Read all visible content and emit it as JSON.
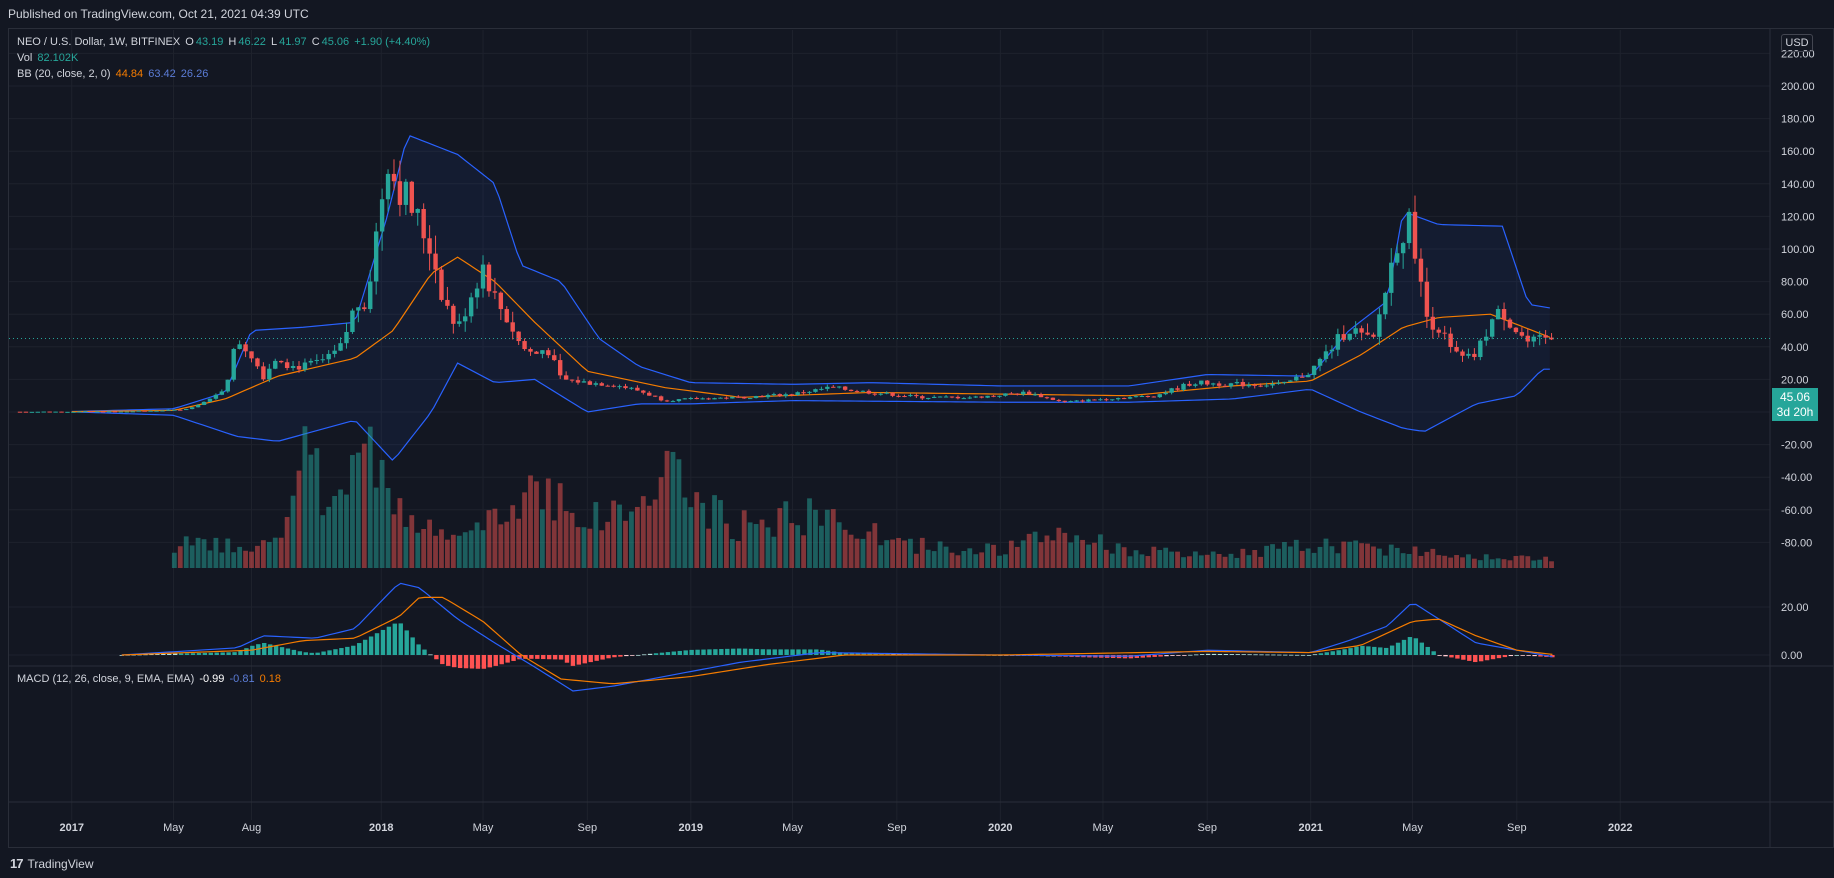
{
  "header": {
    "published": "Published on TradingView.com, Oct 21, 2021 04:39 UTC"
  },
  "footer": {
    "brand": "TradingView"
  },
  "legend": {
    "symbol": "NEO / U.S. Dollar, 1W, BITFINEX",
    "open_label": "O",
    "open": "43.19",
    "high_label": "H",
    "high": "46.22",
    "low_label": "L",
    "low": "41.97",
    "close_label": "C",
    "close": "45.06",
    "change": "+1.90 (+4.40%)",
    "vol_label": "Vol",
    "vol": "82.102K",
    "bb_label": "BB (20, close, 2, 0)",
    "bb_basis": "44.84",
    "bb_upper": "63.42",
    "bb_lower": "26.26",
    "macd_label": "MACD (12, 26, close, 9, EMA, EMA)",
    "macd_hist": "-0.99",
    "macd_line": "-0.81",
    "macd_signal": "0.18"
  },
  "price_axis": {
    "currency": "USD",
    "last_price": "45.06",
    "countdown": "3d 20h"
  },
  "colors": {
    "background": "#131722",
    "up": "#26a69a",
    "down": "#ef5350",
    "bb_band": "#2962ff",
    "bb_basis": "#f57c00",
    "macd_line": "#2962ff",
    "signal_line": "#f57c00",
    "grid": "#1e222d",
    "axis_text": "#d1d4dc"
  },
  "chart_data": [
    {
      "type": "candlestick",
      "title": "NEO / U.S. Dollar, 1W, BITFINEX",
      "ylim": [
        -100,
        230
      ],
      "yticks": [
        "220.00",
        "200.00",
        "180.00",
        "160.00",
        "140.00",
        "120.00",
        "100.00",
        "80.00",
        "60.00",
        "40.00",
        "20.00",
        "0.00",
        "-20.00",
        "-40.00",
        "-60.00",
        "-80.00"
      ],
      "xticks": [
        "2017",
        "May",
        "Aug",
        "2018",
        "May",
        "Sep",
        "2019",
        "May",
        "Sep",
        "2020",
        "May",
        "Sep",
        "2021",
        "May",
        "Sep",
        "2022"
      ],
      "x_range": [
        "2016-11",
        "2022-05"
      ],
      "close_series": [
        [
          "2016-11-01",
          0.2
        ],
        [
          "2017-03-01",
          0.2
        ],
        [
          "2017-05-15",
          1.5
        ],
        [
          "2017-06-15",
          8
        ],
        [
          "2017-07-01",
          15
        ],
        [
          "2017-07-15",
          45
        ],
        [
          "2017-08-01",
          35
        ],
        [
          "2017-08-15",
          22
        ],
        [
          "2017-09-01",
          35
        ],
        [
          "2017-09-15",
          28
        ],
        [
          "2017-10-01",
          28
        ],
        [
          "2017-10-15",
          30
        ],
        [
          "2017-11-01",
          33
        ],
        [
          "2017-11-15",
          40
        ],
        [
          "2017-12-01",
          65
        ],
        [
          "2017-12-15",
          70
        ],
        [
          "2018-01-01",
          130
        ],
        [
          "2018-01-08",
          160
        ],
        [
          "2018-01-15",
          145
        ],
        [
          "2018-02-01",
          130
        ],
        [
          "2018-02-15",
          115
        ],
        [
          "2018-03-01",
          100
        ],
        [
          "2018-03-15",
          70
        ],
        [
          "2018-04-01",
          50
        ],
        [
          "2018-04-15",
          70
        ],
        [
          "2018-05-01",
          90
        ],
        [
          "2018-05-15",
          70
        ],
        [
          "2018-06-01",
          55
        ],
        [
          "2018-06-15",
          40
        ],
        [
          "2018-07-01",
          35
        ],
        [
          "2018-07-15",
          40
        ],
        [
          "2018-08-01",
          20
        ],
        [
          "2018-09-01",
          18
        ],
        [
          "2018-10-01",
          17
        ],
        [
          "2018-11-01",
          13
        ],
        [
          "2018-12-01",
          7
        ],
        [
          "2019-01-01",
          8
        ],
        [
          "2019-03-01",
          9
        ],
        [
          "2019-05-01",
          11
        ],
        [
          "2019-06-15",
          15
        ],
        [
          "2019-08-01",
          12
        ],
        [
          "2019-10-01",
          9
        ],
        [
          "2019-12-01",
          9
        ],
        [
          "2020-02-01",
          12
        ],
        [
          "2020-03-15",
          6
        ],
        [
          "2020-05-01",
          8
        ],
        [
          "2020-07-01",
          10
        ],
        [
          "2020-08-15",
          18
        ],
        [
          "2020-10-01",
          17
        ],
        [
          "2020-12-01",
          17
        ],
        [
          "2021-01-01",
          25
        ],
        [
          "2021-02-15",
          52
        ],
        [
          "2021-03-15",
          42
        ],
        [
          "2021-04-15",
          110
        ],
        [
          "2021-05-01",
          115
        ],
        [
          "2021-05-15",
          60
        ],
        [
          "2021-06-01",
          52
        ],
        [
          "2021-06-15",
          38
        ],
        [
          "2021-07-01",
          32
        ],
        [
          "2021-07-15",
          35
        ],
        [
          "2021-08-01",
          55
        ],
        [
          "2021-08-15",
          62
        ],
        [
          "2021-09-01",
          50
        ],
        [
          "2021-09-15",
          42
        ],
        [
          "2021-10-15",
          45.06
        ]
      ],
      "bollinger": {
        "upper": [
          [
            "2017-01-01",
            0.3
          ],
          [
            "2017-05-01",
            2
          ],
          [
            "2017-07-01",
            12
          ],
          [
            "2017-08-01",
            50
          ],
          [
            "2017-10-01",
            52
          ],
          [
            "2017-12-01",
            55
          ],
          [
            "2018-01-08",
            120
          ],
          [
            "2018-02-01",
            170
          ],
          [
            "2018-04-01",
            158
          ],
          [
            "2018-05-15",
            140
          ],
          [
            "2018-06-15",
            90
          ],
          [
            "2018-08-01",
            80
          ],
          [
            "2018-09-15",
            45
          ],
          [
            "2018-11-01",
            28
          ],
          [
            "2019-01-01",
            18
          ],
          [
            "2019-05-01",
            17
          ],
          [
            "2019-08-01",
            18
          ],
          [
            "2020-01-01",
            16
          ],
          [
            "2020-06-01",
            16
          ],
          [
            "2020-09-01",
            23
          ],
          [
            "2021-01-01",
            22
          ],
          [
            "2021-02-15",
            50
          ],
          [
            "2021-04-01",
            68
          ],
          [
            "2021-04-20",
            123
          ],
          [
            "2021-06-01",
            115
          ],
          [
            "2021-08-15",
            114
          ],
          [
            "2021-09-15",
            66
          ],
          [
            "2021-10-15",
            63.42
          ]
        ],
        "basis": [
          [
            "2017-01-01",
            0.2
          ],
          [
            "2017-05-01",
            1
          ],
          [
            "2017-07-01",
            8
          ],
          [
            "2017-09-01",
            22
          ],
          [
            "2017-12-01",
            33
          ],
          [
            "2018-01-15",
            50
          ],
          [
            "2018-03-01",
            85
          ],
          [
            "2018-04-01",
            95
          ],
          [
            "2018-05-15",
            80
          ],
          [
            "2018-07-01",
            55
          ],
          [
            "2018-09-01",
            25
          ],
          [
            "2018-12-01",
            15
          ],
          [
            "2019-03-01",
            9
          ],
          [
            "2019-08-01",
            12
          ],
          [
            "2020-01-01",
            11
          ],
          [
            "2020-06-01",
            10
          ],
          [
            "2020-10-01",
            16
          ],
          [
            "2021-01-01",
            19
          ],
          [
            "2021-03-01",
            35
          ],
          [
            "2021-04-20",
            52
          ],
          [
            "2021-06-01",
            58
          ],
          [
            "2021-08-01",
            60
          ],
          [
            "2021-10-15",
            44.84
          ]
        ],
        "lower": [
          [
            "2017-01-01",
            0.1
          ],
          [
            "2017-05-01",
            -2
          ],
          [
            "2017-07-15",
            -15
          ],
          [
            "2017-09-01",
            -18
          ],
          [
            "2017-12-01",
            -5
          ],
          [
            "2018-01-15",
            -30
          ],
          [
            "2018-03-01",
            0
          ],
          [
            "2018-04-01",
            30
          ],
          [
            "2018-05-15",
            18
          ],
          [
            "2018-07-01",
            20
          ],
          [
            "2018-09-01",
            0
          ],
          [
            "2018-11-01",
            5
          ],
          [
            "2019-01-01",
            5
          ],
          [
            "2019-05-01",
            7
          ],
          [
            "2020-01-01",
            6
          ],
          [
            "2020-06-01",
            6
          ],
          [
            "2020-10-01",
            8
          ],
          [
            "2021-01-01",
            14
          ],
          [
            "2021-03-01",
            0
          ],
          [
            "2021-04-20",
            -10
          ],
          [
            "2021-05-15",
            -12
          ],
          [
            "2021-07-15",
            5
          ],
          [
            "2021-09-01",
            10
          ],
          [
            "2021-10-01",
            26.26
          ]
        ]
      }
    },
    {
      "type": "bar",
      "title": "Vol",
      "note": "volume histogram bars colored by candle direction",
      "relative_heights": [
        [
          "2017-09-01",
          0.2
        ],
        [
          "2017-10-01",
          0.95
        ],
        [
          "2017-11-01",
          0.55
        ],
        [
          "2017-12-01",
          0.98
        ],
        [
          "2018-01-08",
          0.85
        ],
        [
          "2018-02-01",
          0.4
        ],
        [
          "2018-03-01",
          0.3
        ],
        [
          "2018-04-01",
          0.25
        ],
        [
          "2018-05-01",
          0.35
        ],
        [
          "2018-06-01",
          0.45
        ],
        [
          "2018-07-01",
          0.75
        ],
        [
          "2018-08-01",
          0.6
        ],
        [
          "2018-09-01",
          0.4
        ],
        [
          "2018-11-15",
          0.55
        ],
        [
          "2018-12-01",
          1.0
        ],
        [
          "2019-01-01",
          0.55
        ],
        [
          "2019-03-01",
          0.35
        ],
        [
          "2019-05-01",
          0.45
        ],
        [
          "2019-07-01",
          0.4
        ],
        [
          "2019-09-01",
          0.2
        ],
        [
          "2020-01-01",
          0.15
        ],
        [
          "2020-03-15",
          0.3
        ],
        [
          "2020-06-01",
          0.15
        ],
        [
          "2020-09-01",
          0.1
        ],
        [
          "2021-01-15",
          0.2
        ],
        [
          "2021-05-01",
          0.15
        ],
        [
          "2021-09-01",
          0.08
        ]
      ]
    },
    {
      "type": "line",
      "title": "MACD (12, 26, close, 9, EMA, EMA)",
      "yticks": [
        "20.00",
        "0.00"
      ],
      "series": [
        {
          "name": "MACD",
          "values": [
            [
              "2017-03-01",
              0
            ],
            [
              "2017-07-15",
              3
            ],
            [
              "2017-08-15",
              8
            ],
            [
              "2017-10-15",
              7
            ],
            [
              "2017-12-01",
              11
            ],
            [
              "2018-01-08",
              25
            ],
            [
              "2018-01-22",
              30
            ],
            [
              "2018-02-15",
              28
            ],
            [
              "2018-04-01",
              15
            ],
            [
              "2018-05-15",
              5
            ],
            [
              "2018-07-01",
              -5
            ],
            [
              "2018-08-15",
              -15
            ],
            [
              "2018-10-01",
              -13
            ],
            [
              "2018-12-15",
              -8
            ],
            [
              "2019-03-01",
              -3
            ],
            [
              "2019-06-01",
              1
            ],
            [
              "2020-01-01",
              0
            ],
            [
              "2020-06-01",
              -0.5
            ],
            [
              "2020-09-01",
              2
            ],
            [
              "2021-01-01",
              1
            ],
            [
              "2021-02-15",
              6
            ],
            [
              "2021-04-01",
              12
            ],
            [
              "2021-05-01",
              22
            ],
            [
              "2021-06-01",
              15
            ],
            [
              "2021-07-15",
              5
            ],
            [
              "2021-09-01",
              2
            ],
            [
              "2021-10-15",
              -0.81
            ]
          ]
        },
        {
          "name": "Signal",
          "values": [
            [
              "2017-03-01",
              0
            ],
            [
              "2017-08-01",
              2
            ],
            [
              "2017-10-01",
              6
            ],
            [
              "2017-12-01",
              7
            ],
            [
              "2018-01-22",
              16
            ],
            [
              "2018-02-15",
              24
            ],
            [
              "2018-03-15",
              24
            ],
            [
              "2018-05-01",
              14
            ],
            [
              "2018-06-15",
              0
            ],
            [
              "2018-08-01",
              -10
            ],
            [
              "2018-10-01",
              -12
            ],
            [
              "2019-01-01",
              -9
            ],
            [
              "2019-04-01",
              -4
            ],
            [
              "2019-07-01",
              0
            ],
            [
              "2020-01-01",
              0
            ],
            [
              "2020-09-01",
              1.5
            ],
            [
              "2021-01-01",
              1
            ],
            [
              "2021-03-01",
              4
            ],
            [
              "2021-05-01",
              14
            ],
            [
              "2021-06-01",
              15
            ],
            [
              "2021-07-15",
              8
            ],
            [
              "2021-09-01",
              2
            ],
            [
              "2021-10-15",
              0.18
            ]
          ]
        }
      ]
    }
  ]
}
